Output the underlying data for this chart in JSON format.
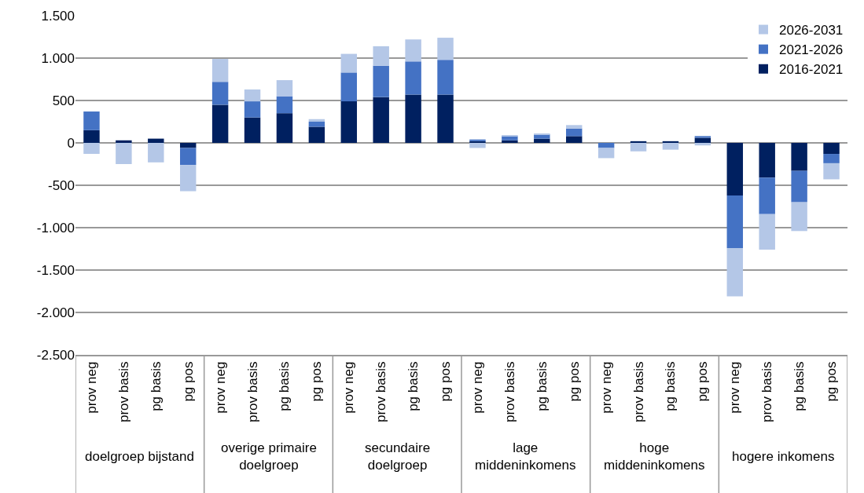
{
  "chart_data": {
    "type": "bar",
    "stacked": true,
    "categories": [
      "prov neg",
      "prov basis",
      "pg basis",
      "pg pos",
      "prov neg",
      "prov basis",
      "pg basis",
      "pg pos",
      "prov neg",
      "prov basis",
      "pg basis",
      "pg pos",
      "prov neg",
      "prov basis",
      "pg basis",
      "pg pos",
      "prov neg",
      "prov basis",
      "pg basis",
      "pg pos",
      "prov neg",
      "prov basis",
      "pg basis",
      "pg pos"
    ],
    "series": [
      {
        "name": "2016-2021",
        "color": "#002060",
        "values": [
          150,
          30,
          50,
          -60,
          450,
          300,
          350,
          190,
          490,
          540,
          570,
          570,
          20,
          30,
          50,
          80,
          null,
          20,
          20,
          60,
          -620,
          -410,
          -330,
          -130
        ]
      },
      {
        "name": "2021-2026",
        "color": "#4472c4",
        "values": [
          220,
          null,
          null,
          -200,
          270,
          190,
          200,
          60,
          340,
          370,
          390,
          410,
          20,
          50,
          50,
          90,
          -60,
          null,
          null,
          20,
          -620,
          -430,
          -370,
          -110
        ]
      },
      {
        "name": "2026-2031",
        "color": "#b4c7e7",
        "values": [
          -130,
          -250,
          -230,
          -310,
          270,
          140,
          190,
          30,
          220,
          230,
          260,
          260,
          -60,
          10,
          10,
          40,
          -120,
          -100,
          -80,
          -30,
          -570,
          -420,
          -340,
          -190
        ]
      }
    ],
    "annotations": [
      "doelgroep bijstand",
      "overige primaire\ndoelgroep",
      "secundaire\ndoelgroep",
      "lage\nmiddeninkomens",
      "hoge\nmiddeninkomens",
      "hogere inkomens"
    ],
    "ylim": [
      -2500,
      1500
    ],
    "yticks": [
      {
        "value": -2500,
        "label": "-2.500"
      },
      {
        "value": -2000,
        "label": "-2.000"
      },
      {
        "value": -1500,
        "label": "-1.500"
      },
      {
        "value": -1000,
        "label": "-1.000"
      },
      -500,
      0,
      500,
      {
        "value": 1000,
        "label": "1.000"
      },
      {
        "value": 1500,
        "label": "1.500"
      }
    ],
    "grid": "y",
    "legend": "top right"
  }
}
